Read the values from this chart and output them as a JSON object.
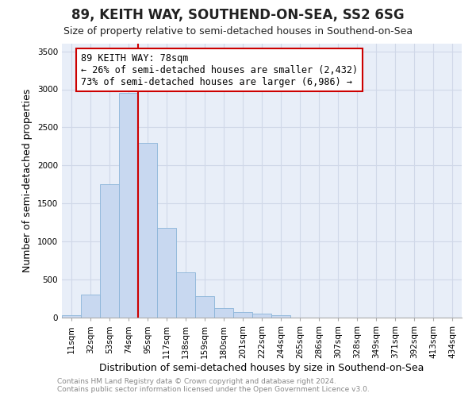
{
  "title": "89, KEITH WAY, SOUTHEND-ON-SEA, SS2 6SG",
  "subtitle": "Size of property relative to semi-detached houses in Southend-on-Sea",
  "xlabel": "Distribution of semi-detached houses by size in Southend-on-Sea",
  "ylabel": "Number of semi-detached properties",
  "footnote1": "Contains HM Land Registry data © Crown copyright and database right 2024.",
  "footnote2": "Contains public sector information licensed under the Open Government Licence v3.0.",
  "categories": [
    "11sqm",
    "32sqm",
    "53sqm",
    "74sqm",
    "95sqm",
    "117sqm",
    "138sqm",
    "159sqm",
    "180sqm",
    "201sqm",
    "222sqm",
    "244sqm",
    "265sqm",
    "286sqm",
    "307sqm",
    "328sqm",
    "349sqm",
    "371sqm",
    "392sqm",
    "413sqm",
    "434sqm"
  ],
  "values": [
    30,
    300,
    1750,
    2950,
    2300,
    1175,
    600,
    280,
    130,
    75,
    50,
    30,
    5,
    3,
    2,
    1,
    1,
    0,
    0,
    0,
    0
  ],
  "bar_color": "#c8d8f0",
  "bar_edge_color": "#8ab4d8",
  "grid_color": "#d0d8e8",
  "background_color": "#e8eef8",
  "property_line_color": "#cc0000",
  "annotation_line1": "89 KEITH WAY: 78sqm",
  "annotation_line2": "← 26% of semi-detached houses are smaller (2,432)",
  "annotation_line3": "73% of semi-detached houses are larger (6,986) →",
  "annotation_box_color": "#ffffff",
  "annotation_box_edge": "#cc0000",
  "ylim": [
    0,
    3600
  ],
  "yticks": [
    0,
    500,
    1000,
    1500,
    2000,
    2500,
    3000,
    3500
  ],
  "title_fontsize": 12,
  "subtitle_fontsize": 9,
  "ylabel_fontsize": 9,
  "xlabel_fontsize": 9,
  "tick_fontsize": 7.5,
  "footnote_fontsize": 6.5,
  "footnote_color": "#888888"
}
